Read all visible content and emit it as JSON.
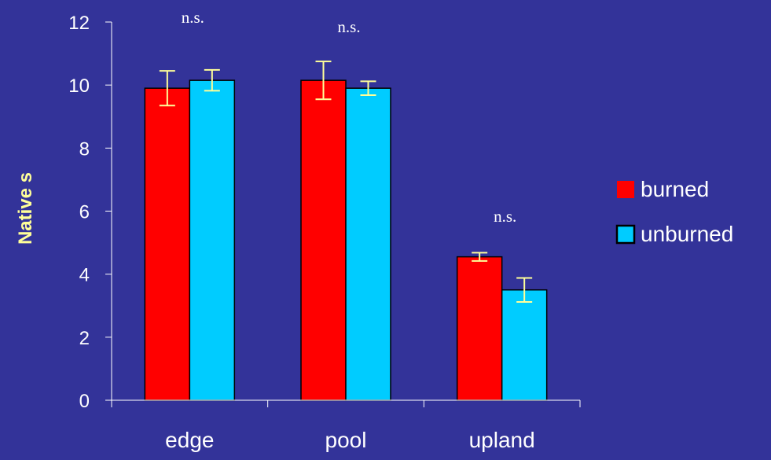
{
  "chart_data": {
    "type": "bar",
    "title": "",
    "xlabel": "",
    "ylabel": "Native s",
    "categories": [
      "edge",
      "pool",
      "upland"
    ],
    "series": [
      {
        "name": "burned",
        "color": "#ff0000",
        "values": [
          9.9,
          10.15,
          4.55
        ],
        "errors": [
          0.55,
          0.6,
          0.13
        ]
      },
      {
        "name": "unburned",
        "color": "#00ccff",
        "values": [
          10.15,
          9.9,
          3.5
        ],
        "errors": [
          0.33,
          0.22,
          0.38
        ]
      }
    ],
    "ylim": [
      0,
      12
    ],
    "yticks": [
      "0",
      "2",
      "4",
      "6",
      "8",
      "10",
      "12"
    ],
    "annotations": [
      "n.s.",
      "n.s.",
      "n.s."
    ],
    "grid": false,
    "legend_position": "right",
    "background_color": "#333399",
    "axis_color": "#ffffff",
    "errorbar_color": "#ffff99"
  }
}
